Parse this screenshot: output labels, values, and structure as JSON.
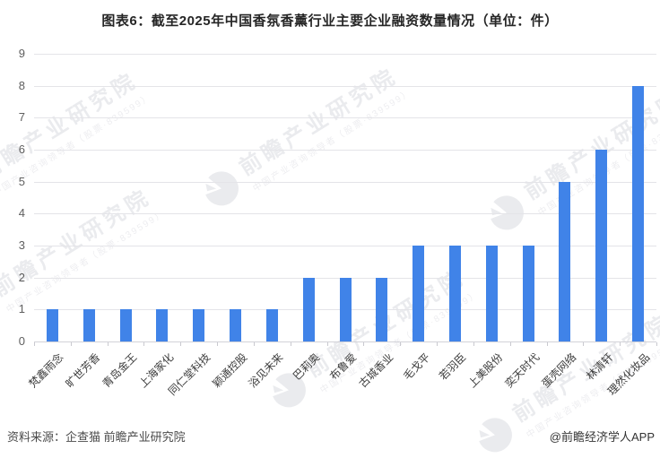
{
  "title": "图表6：截至2025年中国香氛香薰行业主要企业融资数量情况（单位：件）",
  "chart_data": {
    "type": "bar",
    "title": "图表6：截至2025年中国香氛香薰行业主要企业融资数量情况（单位：件）",
    "categories": [
      "梵鑫雨念",
      "旷世芳香",
      "青岛金王",
      "上海家化",
      "同仁堂科技",
      "颖通控股",
      "浴见未来",
      "巴莉奥",
      "布鲁爱",
      "古城香业",
      "毛戈平",
      "若羽臣",
      "上美股份",
      "奕天时代",
      "蛋壳网络",
      "林清轩",
      "理然化妆品"
    ],
    "values": [
      1,
      1,
      1,
      1,
      1,
      1,
      1,
      2,
      2,
      2,
      3,
      3,
      3,
      3,
      5,
      6,
      8
    ],
    "xlabel": "",
    "ylabel": "",
    "unit": "件",
    "ylim": [
      0,
      9
    ],
    "ytick_step": 1,
    "grid": true,
    "legend_position": "none",
    "bar_color": "#4083e8"
  },
  "footer": {
    "source": "资料来源：企查猫 前瞻产业研究院",
    "credit": "@前瞻经济学人APP"
  },
  "watermark": {
    "brand": "前瞻产业研究院",
    "tagline": "中国产业咨询领导者（股票·839599）"
  },
  "colors": {
    "bar": "#4083e8",
    "gridline": "#e4e4e8",
    "title_text": "#262626",
    "axis_text": "#5f5f5f",
    "background": "#ffffff"
  }
}
